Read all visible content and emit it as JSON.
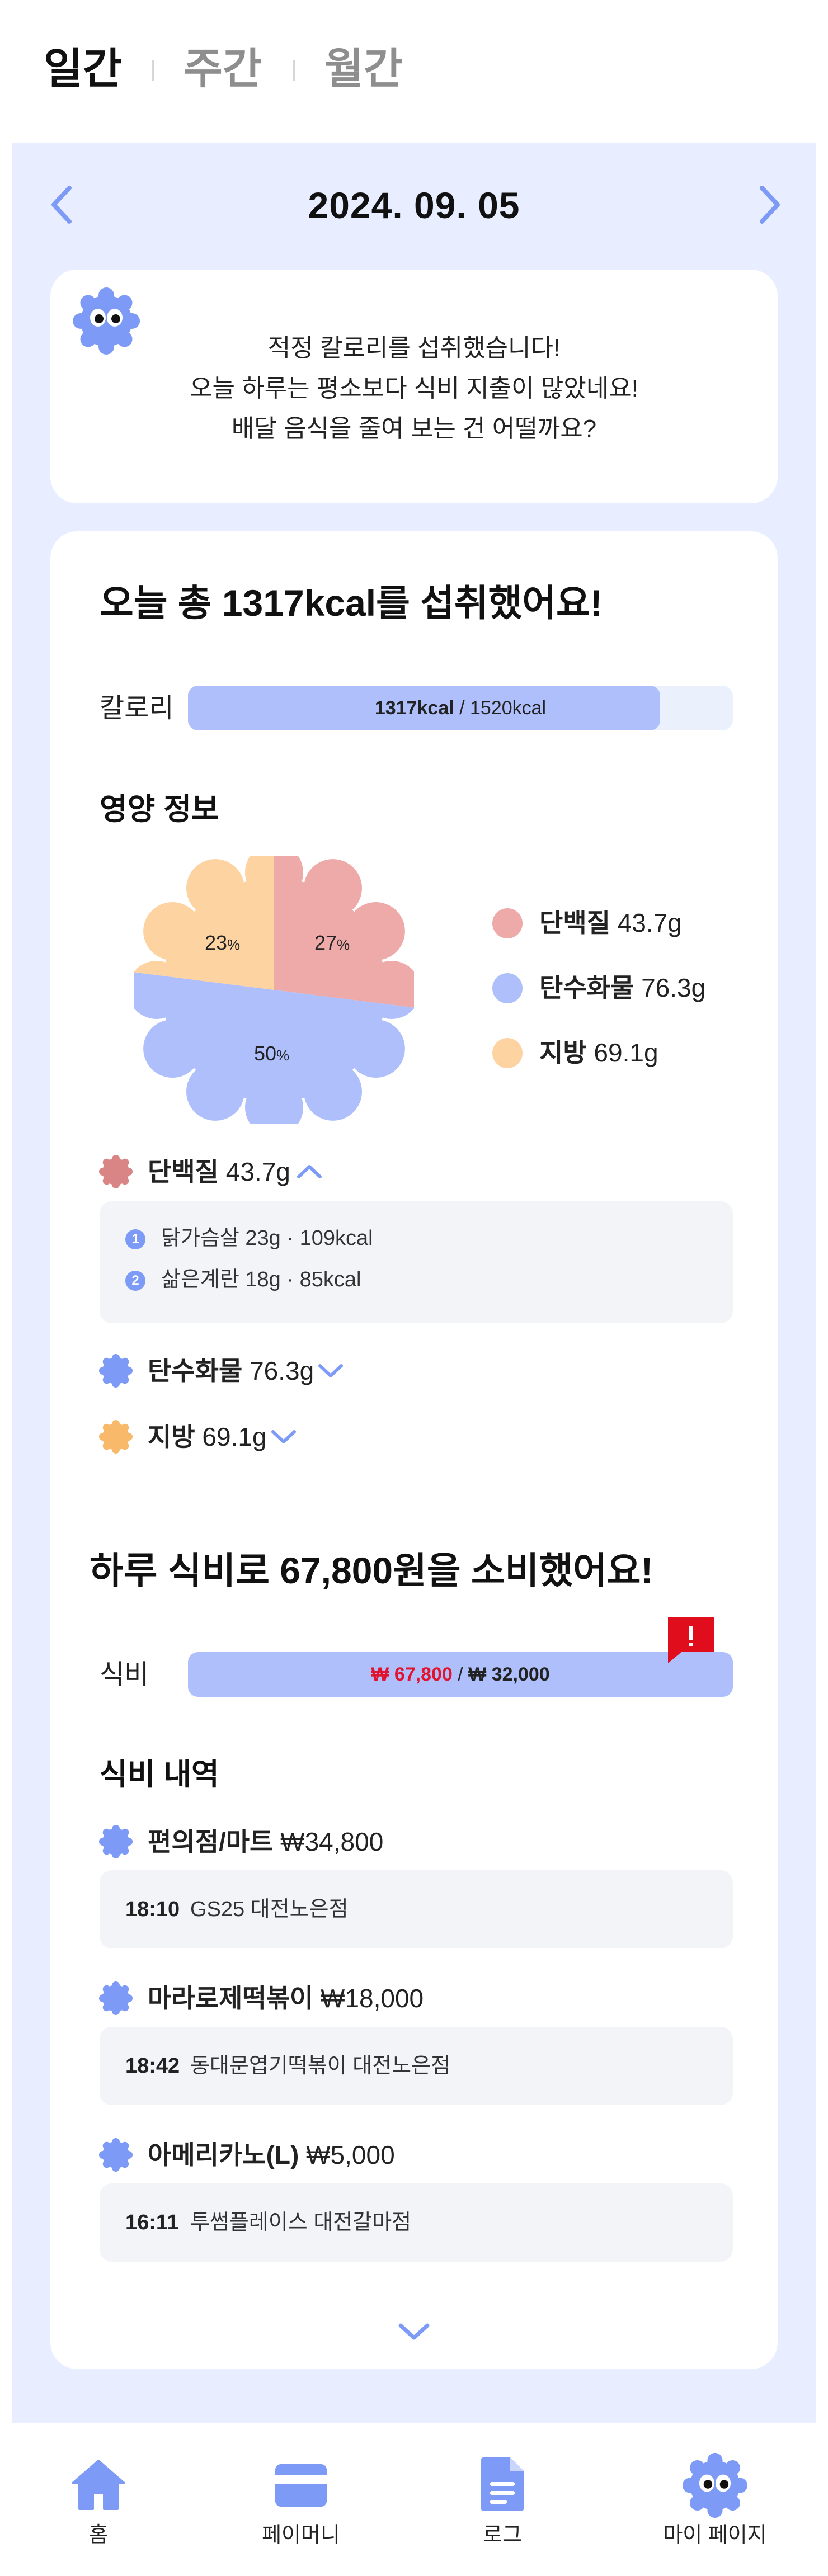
{
  "tabs": [
    {
      "label": "일간",
      "active": true
    },
    {
      "label": "주간",
      "active": false
    },
    {
      "label": "월간",
      "active": false
    }
  ],
  "date": {
    "label": "2024. 09. 05",
    "prev_icon": "chevron-left-icon",
    "next_icon": "chevron-right-icon"
  },
  "message": {
    "lines": [
      "적정 칼로리를 섭취했습니다!",
      "오늘 하루는 평소보다 식비 지출이 많았네요!",
      "배달 음식을 줄여 보는 건 어떨까요?"
    ]
  },
  "calorie": {
    "headline": "오늘 총 1317kcal를 섭취했어요!",
    "label": "칼로리",
    "current": "1317kcal",
    "separator": " / ",
    "target": "1520kcal",
    "current_value": 1317,
    "target_value": 1520
  },
  "nutrition": {
    "title": "영양 정보",
    "slices": [
      {
        "name": "단백질",
        "amount": "43.7g",
        "percent": 27,
        "percent_label": "27",
        "unit": "%",
        "color": "#eeaaa8"
      },
      {
        "name": "탄수화물",
        "amount": "76.3g",
        "percent": 50,
        "percent_label": "50",
        "unit": "%",
        "color": "#aebffb"
      },
      {
        "name": "지방",
        "amount": "69.1g",
        "percent": 23,
        "percent_label": "23",
        "unit": "%",
        "color": "#fed3a2"
      }
    ],
    "details": [
      {
        "name": "단백질",
        "amount": "43.7g",
        "color": "#d98586",
        "expanded": true,
        "items": [
          {
            "no": "1",
            "text": "닭가슴살 23g  · 109kcal"
          },
          {
            "no": "2",
            "text": "삶은계란 18g · 85kcal"
          }
        ]
      },
      {
        "name": "탄수화물",
        "amount": "76.3g",
        "color": "#7d9bf6",
        "expanded": false
      },
      {
        "name": "지방",
        "amount": "69.1g",
        "color": "#f9b96a",
        "expanded": false
      }
    ]
  },
  "spending": {
    "headline": "하루 식비로 67,800원을 소비했어요!",
    "label": "식비",
    "current": "₩ 67,800",
    "separator": " / ",
    "budget": "₩ 32,000",
    "current_value": 67800,
    "budget_value": 32000,
    "alert_icon": "exclamation-alert-icon",
    "alert_symbol": "!"
  },
  "expenses": {
    "title": "식비 내역",
    "items": [
      {
        "category": "편의점/마트",
        "amount": "₩34,800",
        "time": "18:10",
        "place": "GS25 대전노은점"
      },
      {
        "category": "마라로제떡볶이",
        "amount": "₩18,000",
        "time": "18:42",
        "place": "동대문엽기떡볶이 대전노은점"
      },
      {
        "category": "아메리카노(L)",
        "amount": "₩5,000",
        "time": "16:11",
        "place": "투썸플레이스 대전갈마점"
      }
    ],
    "more_icon": "chevron-down-icon"
  },
  "bottom_nav": [
    {
      "label": "홈",
      "icon": "home-icon",
      "color": "#7d9bf6"
    },
    {
      "label": "페이머니",
      "icon": "card-icon",
      "color": "#7d9bf6"
    },
    {
      "label": "로그",
      "icon": "document-icon",
      "color": "#7d9bf6"
    },
    {
      "label": "마이 페이지",
      "icon": "mascot-icon",
      "color": "#7d9bf6"
    }
  ]
}
